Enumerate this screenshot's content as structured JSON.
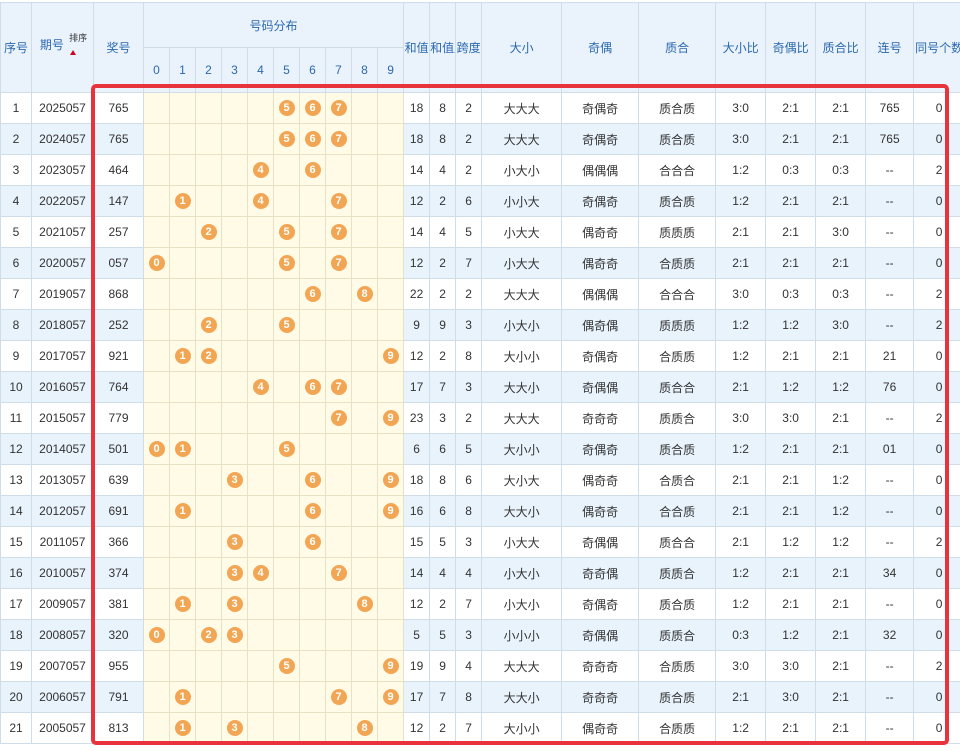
{
  "headers": {
    "seq": "序号",
    "period": "期号",
    "sort": "排序",
    "prize": "奖号",
    "distribution": "号码分布",
    "sum": "和值",
    "sum_tail": "和值尾",
    "span": "跨度",
    "big_small": "大小",
    "odd_even": "奇偶",
    "prime_comp": "质合",
    "big_small_ratio": "大小比",
    "odd_even_ratio": "奇偶比",
    "prime_comp_ratio": "质合比",
    "consecutive": "连号",
    "same_count": "同号个数"
  },
  "digits": [
    "0",
    "1",
    "2",
    "3",
    "4",
    "5",
    "6",
    "7",
    "8",
    "9"
  ],
  "colors": {
    "accent_header": "#2b68b0",
    "ball": "#f2a654",
    "highlight_box": "#e8323c"
  },
  "rows": [
    {
      "seq": "1",
      "period": "2025057",
      "prize": "765",
      "sum": "18",
      "tail": "8",
      "span": "2",
      "bs": "大大大",
      "oe": "奇偶奇",
      "pc": "质合质",
      "bsr": "3:0",
      "oer": "2:1",
      "pcr": "2:1",
      "con": "765",
      "same": "0"
    },
    {
      "seq": "2",
      "period": "2024057",
      "prize": "765",
      "sum": "18",
      "tail": "8",
      "span": "2",
      "bs": "大大大",
      "oe": "奇偶奇",
      "pc": "质合质",
      "bsr": "3:0",
      "oer": "2:1",
      "pcr": "2:1",
      "con": "765",
      "same": "0"
    },
    {
      "seq": "3",
      "period": "2023057",
      "prize": "464",
      "sum": "14",
      "tail": "4",
      "span": "2",
      "bs": "小大小",
      "oe": "偶偶偶",
      "pc": "合合合",
      "bsr": "1:2",
      "oer": "0:3",
      "pcr": "0:3",
      "con": "--",
      "same": "2"
    },
    {
      "seq": "4",
      "period": "2022057",
      "prize": "147",
      "sum": "12",
      "tail": "2",
      "span": "6",
      "bs": "小小大",
      "oe": "奇偶奇",
      "pc": "质合质",
      "bsr": "1:2",
      "oer": "2:1",
      "pcr": "2:1",
      "con": "--",
      "same": "0"
    },
    {
      "seq": "5",
      "period": "2021057",
      "prize": "257",
      "sum": "14",
      "tail": "4",
      "span": "5",
      "bs": "小大大",
      "oe": "偶奇奇",
      "pc": "质质质",
      "bsr": "2:1",
      "oer": "2:1",
      "pcr": "3:0",
      "con": "--",
      "same": "0"
    },
    {
      "seq": "6",
      "period": "2020057",
      "prize": "057",
      "sum": "12",
      "tail": "2",
      "span": "7",
      "bs": "小大大",
      "oe": "偶奇奇",
      "pc": "合质质",
      "bsr": "2:1",
      "oer": "2:1",
      "pcr": "2:1",
      "con": "--",
      "same": "0"
    },
    {
      "seq": "7",
      "period": "2019057",
      "prize": "868",
      "sum": "22",
      "tail": "2",
      "span": "2",
      "bs": "大大大",
      "oe": "偶偶偶",
      "pc": "合合合",
      "bsr": "3:0",
      "oer": "0:3",
      "pcr": "0:3",
      "con": "--",
      "same": "2"
    },
    {
      "seq": "8",
      "period": "2018057",
      "prize": "252",
      "sum": "9",
      "tail": "9",
      "span": "3",
      "bs": "小大小",
      "oe": "偶奇偶",
      "pc": "质质质",
      "bsr": "1:2",
      "oer": "1:2",
      "pcr": "3:0",
      "con": "--",
      "same": "2"
    },
    {
      "seq": "9",
      "period": "2017057",
      "prize": "921",
      "sum": "12",
      "tail": "2",
      "span": "8",
      "bs": "大小小",
      "oe": "奇偶奇",
      "pc": "合质质",
      "bsr": "1:2",
      "oer": "2:1",
      "pcr": "2:1",
      "con": "21",
      "same": "0"
    },
    {
      "seq": "10",
      "period": "2016057",
      "prize": "764",
      "sum": "17",
      "tail": "7",
      "span": "3",
      "bs": "大大小",
      "oe": "奇偶偶",
      "pc": "质合合",
      "bsr": "2:1",
      "oer": "1:2",
      "pcr": "1:2",
      "con": "76",
      "same": "0"
    },
    {
      "seq": "11",
      "period": "2015057",
      "prize": "779",
      "sum": "23",
      "tail": "3",
      "span": "2",
      "bs": "大大大",
      "oe": "奇奇奇",
      "pc": "质质合",
      "bsr": "3:0",
      "oer": "3:0",
      "pcr": "2:1",
      "con": "--",
      "same": "2"
    },
    {
      "seq": "12",
      "period": "2014057",
      "prize": "501",
      "sum": "6",
      "tail": "6",
      "span": "5",
      "bs": "大小小",
      "oe": "奇偶奇",
      "pc": "质合质",
      "bsr": "1:2",
      "oer": "2:1",
      "pcr": "2:1",
      "con": "01",
      "same": "0"
    },
    {
      "seq": "13",
      "period": "2013057",
      "prize": "639",
      "sum": "18",
      "tail": "8",
      "span": "6",
      "bs": "大小大",
      "oe": "偶奇奇",
      "pc": "合质合",
      "bsr": "2:1",
      "oer": "2:1",
      "pcr": "1:2",
      "con": "--",
      "same": "0"
    },
    {
      "seq": "14",
      "period": "2012057",
      "prize": "691",
      "sum": "16",
      "tail": "6",
      "span": "8",
      "bs": "大大小",
      "oe": "偶奇奇",
      "pc": "合合质",
      "bsr": "2:1",
      "oer": "2:1",
      "pcr": "1:2",
      "con": "--",
      "same": "0"
    },
    {
      "seq": "15",
      "period": "2011057",
      "prize": "366",
      "sum": "15",
      "tail": "5",
      "span": "3",
      "bs": "小大大",
      "oe": "奇偶偶",
      "pc": "质合合",
      "bsr": "2:1",
      "oer": "1:2",
      "pcr": "1:2",
      "con": "--",
      "same": "2"
    },
    {
      "seq": "16",
      "period": "2010057",
      "prize": "374",
      "sum": "14",
      "tail": "4",
      "span": "4",
      "bs": "小大小",
      "oe": "奇奇偶",
      "pc": "质质合",
      "bsr": "1:2",
      "oer": "2:1",
      "pcr": "2:1",
      "con": "34",
      "same": "0"
    },
    {
      "seq": "17",
      "period": "2009057",
      "prize": "381",
      "sum": "12",
      "tail": "2",
      "span": "7",
      "bs": "小大小",
      "oe": "奇偶奇",
      "pc": "质合质",
      "bsr": "1:2",
      "oer": "2:1",
      "pcr": "2:1",
      "con": "--",
      "same": "0"
    },
    {
      "seq": "18",
      "period": "2008057",
      "prize": "320",
      "sum": "5",
      "tail": "5",
      "span": "3",
      "bs": "小小小",
      "oe": "奇偶偶",
      "pc": "质质合",
      "bsr": "0:3",
      "oer": "1:2",
      "pcr": "2:1",
      "con": "32",
      "same": "0"
    },
    {
      "seq": "19",
      "period": "2007057",
      "prize": "955",
      "sum": "19",
      "tail": "9",
      "span": "4",
      "bs": "大大大",
      "oe": "奇奇奇",
      "pc": "合质质",
      "bsr": "3:0",
      "oer": "3:0",
      "pcr": "2:1",
      "con": "--",
      "same": "2"
    },
    {
      "seq": "20",
      "period": "2006057",
      "prize": "791",
      "sum": "17",
      "tail": "7",
      "span": "8",
      "bs": "大大小",
      "oe": "奇奇奇",
      "pc": "质合质",
      "bsr": "2:1",
      "oer": "3:0",
      "pcr": "2:1",
      "con": "--",
      "same": "0"
    },
    {
      "seq": "21",
      "period": "2005057",
      "prize": "813",
      "sum": "12",
      "tail": "2",
      "span": "7",
      "bs": "大小小",
      "oe": "偶奇奇",
      "pc": "合质质",
      "bsr": "1:2",
      "oer": "2:1",
      "pcr": "2:1",
      "con": "--",
      "same": "0"
    }
  ]
}
